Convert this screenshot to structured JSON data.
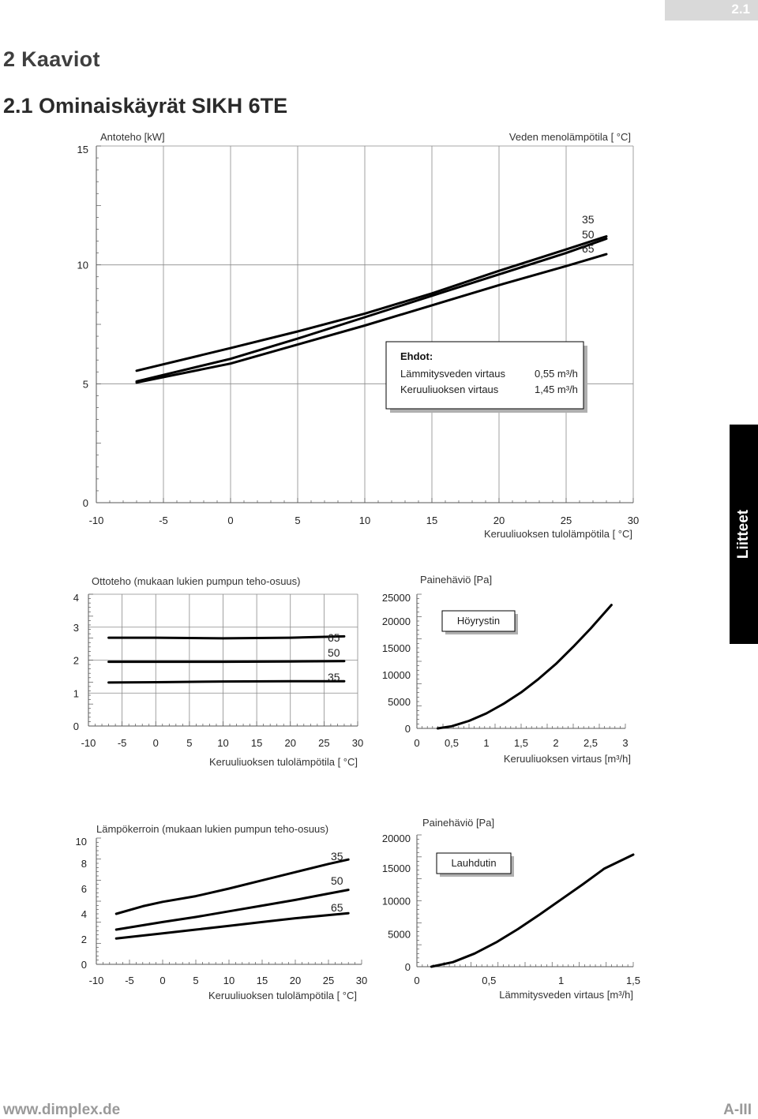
{
  "header": {
    "page_number": "2.1"
  },
  "titles": {
    "chapter": "2  Kaaviot",
    "section": "2.1  Ominaiskäyrät SIKH 6TE"
  },
  "side_tab": "Liitteet",
  "footer": {
    "url": "www.dimplex.de",
    "page": "A-III"
  },
  "chart_data": [
    {
      "id": "power-input",
      "type": "line",
      "title": "Antoteho [kW]",
      "legend_title": "Veden menolämpötila [ °C]",
      "xlabel": "Keruuliuoksen tulolämpötila [ °C]",
      "ylabel": "",
      "xlim": [
        -10,
        30
      ],
      "ylim": [
        0,
        15
      ],
      "xticks": [
        "-10",
        "-5",
        "0",
        "5",
        "10",
        "15",
        "20",
        "25",
        "30"
      ],
      "yticks": [
        "0",
        "5",
        "10",
        "15"
      ],
      "grid": true,
      "series": [
        {
          "name": "35",
          "x": [
            -7,
            0,
            5,
            10,
            15,
            20,
            25,
            28
          ],
          "y": [
            5.55,
            6.5,
            7.2,
            7.95,
            8.8,
            9.75,
            10.65,
            11.2
          ]
        },
        {
          "name": "50",
          "x": [
            -7,
            0,
            5,
            10,
            15,
            20,
            25,
            28
          ],
          "y": [
            5.1,
            6.05,
            6.9,
            7.8,
            8.7,
            9.6,
            10.5,
            11.1
          ]
        },
        {
          "name": "65",
          "x": [
            -7,
            0,
            5,
            10,
            15,
            20,
            25,
            28
          ],
          "y": [
            5.05,
            5.85,
            6.65,
            7.45,
            8.3,
            9.15,
            9.95,
            10.45
          ]
        }
      ],
      "conditions": {
        "heading": "Ehdot:",
        "rows": [
          {
            "label": "Lämmitysveden virtaus",
            "value": "0,55 m³/h"
          },
          {
            "label": "Keruuliuoksen virtaus",
            "value": "1,45 m³/h"
          }
        ]
      }
    },
    {
      "id": "power-consumption",
      "type": "line",
      "title": "Ottoteho (mukaan lukien pumpun teho-osuus)",
      "xlabel": "Keruuliuoksen tulolämpötila [ °C]",
      "ylabel": "",
      "xlim": [
        -10,
        30
      ],
      "ylim": [
        0,
        4
      ],
      "xticks": [
        "-10",
        "-5",
        "0",
        "5",
        "10",
        "15",
        "20",
        "25",
        "30"
      ],
      "yticks": [
        "0",
        "1",
        "2",
        "3",
        "4"
      ],
      "grid": true,
      "series": [
        {
          "name": "65",
          "x": [
            -7,
            0,
            10,
            20,
            28
          ],
          "y": [
            2.68,
            2.68,
            2.66,
            2.68,
            2.72
          ]
        },
        {
          "name": "50",
          "x": [
            -7,
            0,
            10,
            20,
            28
          ],
          "y": [
            1.95,
            1.95,
            1.95,
            1.96,
            1.97
          ]
        },
        {
          "name": "35",
          "x": [
            -7,
            0,
            10,
            20,
            28
          ],
          "y": [
            1.32,
            1.33,
            1.35,
            1.36,
            1.36
          ]
        }
      ]
    },
    {
      "id": "evaporator-pressure-drop",
      "type": "line",
      "title": "Painehäviö [Pa]",
      "annotation": "Höyrystin",
      "xlabel": "Keruuliuoksen virtaus [m³/h]",
      "ylabel": "",
      "xlim": [
        0,
        3
      ],
      "ylim": [
        0,
        25000
      ],
      "xticks": [
        "0",
        "0,5",
        "1",
        "1,5",
        "2",
        "2,5",
        "3"
      ],
      "yticks": [
        "0",
        "5000",
        "10000",
        "15000",
        "20000",
        "25000"
      ],
      "grid": false,
      "series": [
        {
          "name": "",
          "x": [
            0.3,
            0.5,
            0.75,
            1.0,
            1.25,
            1.5,
            1.75,
            2.0,
            2.25,
            2.5,
            2.8
          ],
          "y": [
            0,
            400,
            1400,
            2800,
            4600,
            6700,
            9200,
            12000,
            15200,
            18600,
            23000
          ]
        }
      ]
    },
    {
      "id": "cop",
      "type": "line",
      "title": "Lämpökerroin (mukaan lukien pumpun teho-osuus)",
      "xlabel": "Keruuliuoksen tulolämpötila [ °C]",
      "ylabel": "",
      "xlim": [
        -10,
        30
      ],
      "ylim": [
        0,
        10
      ],
      "xticks": [
        "-10",
        "-5",
        "0",
        "5",
        "10",
        "15",
        "20",
        "25",
        "30"
      ],
      "yticks": [
        "0",
        "2",
        "4",
        "6",
        "8",
        "10"
      ],
      "grid": false,
      "series": [
        {
          "name": "35",
          "x": [
            -7,
            -3,
            0,
            5,
            10,
            15,
            20,
            25,
            28
          ],
          "y": [
            4.0,
            4.6,
            4.95,
            5.4,
            6.0,
            6.65,
            7.3,
            7.95,
            8.3
          ]
        },
        {
          "name": "50",
          "x": [
            -7,
            0,
            5,
            10,
            15,
            20,
            25,
            28
          ],
          "y": [
            2.75,
            3.35,
            3.75,
            4.2,
            4.65,
            5.1,
            5.6,
            5.9
          ]
        },
        {
          "name": "65",
          "x": [
            -7,
            0,
            5,
            10,
            15,
            20,
            25,
            28
          ],
          "y": [
            2.05,
            2.45,
            2.75,
            3.05,
            3.35,
            3.65,
            3.9,
            4.05
          ]
        }
      ]
    },
    {
      "id": "condenser-pressure-drop",
      "type": "line",
      "title": "Painehäviö [Pa]",
      "annotation": "Lauhdutin",
      "xlabel": "Lämmitysveden virtaus [m³/h]",
      "ylabel": "",
      "xlim": [
        0,
        1.5
      ],
      "ylim": [
        0,
        20000
      ],
      "xticks": [
        "0",
        "0,5",
        "1",
        "1,5"
      ],
      "yticks": [
        "0",
        "5000",
        "10000",
        "15000",
        "20000"
      ],
      "grid": false,
      "series": [
        {
          "name": "",
          "x": [
            0.1,
            0.25,
            0.4,
            0.55,
            0.7,
            0.85,
            1.0,
            1.15,
            1.3,
            1.5
          ],
          "y": [
            0,
            700,
            2000,
            3700,
            5700,
            7900,
            10200,
            12500,
            14900,
            17000
          ]
        }
      ]
    }
  ]
}
